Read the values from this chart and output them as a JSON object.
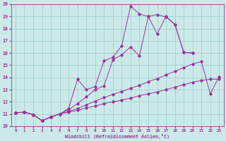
{
  "xlabel": "Windchill (Refroidissement éolien,°C)",
  "bg_color": "#cce9e9",
  "grid_color": "#99cccc",
  "line_color": "#993399",
  "xlim": [
    -0.5,
    23.5
  ],
  "ylim": [
    10,
    20
  ],
  "yticks": [
    10,
    11,
    12,
    13,
    14,
    15,
    16,
    17,
    18,
    19,
    20
  ],
  "xticks": [
    0,
    1,
    2,
    3,
    4,
    5,
    6,
    7,
    8,
    9,
    10,
    11,
    12,
    13,
    14,
    15,
    16,
    17,
    18,
    19,
    20,
    21,
    22,
    23
  ],
  "series": {
    "s1_x": [
      0,
      1,
      2,
      3,
      4,
      5,
      6,
      7,
      8,
      9,
      10,
      11,
      12,
      13,
      14,
      15,
      16,
      17,
      18,
      19,
      20,
      21,
      22,
      23
    ],
    "s1_y": [
      11.1,
      11.15,
      10.95,
      10.45,
      10.75,
      11.0,
      11.15,
      11.3,
      11.5,
      11.65,
      11.85,
      12.0,
      12.15,
      12.3,
      12.5,
      12.65,
      12.8,
      13.0,
      13.2,
      13.4,
      13.6,
      13.75,
      13.85,
      13.85
    ],
    "s2_x": [
      0,
      1,
      2,
      3,
      4,
      5,
      6,
      7,
      8,
      9,
      10,
      11,
      12,
      13,
      14,
      15,
      16,
      17,
      18,
      19,
      20,
      21,
      22,
      23
    ],
    "s2_y": [
      11.1,
      11.15,
      10.95,
      10.45,
      10.75,
      11.0,
      11.2,
      11.45,
      11.75,
      12.05,
      12.35,
      12.6,
      12.85,
      13.1,
      13.35,
      13.65,
      13.9,
      14.2,
      14.5,
      14.8,
      15.1,
      15.3,
      12.65,
      14.05
    ],
    "s3_x": [
      0,
      1,
      2,
      3,
      4,
      5,
      6,
      7,
      8,
      9,
      10,
      11,
      12,
      13,
      14,
      15,
      16,
      17,
      18,
      19,
      20
    ],
    "s3_y": [
      11.1,
      11.15,
      10.95,
      10.45,
      10.75,
      11.0,
      11.35,
      11.85,
      12.4,
      13.0,
      13.3,
      15.45,
      15.85,
      16.5,
      15.75,
      19.0,
      19.15,
      18.95,
      18.35,
      16.05,
      16.0
    ],
    "s4_x": [
      0,
      1,
      2,
      3,
      4,
      5,
      6,
      7,
      8,
      9,
      10,
      11,
      12,
      13,
      14,
      15,
      16,
      17,
      18,
      19,
      20
    ],
    "s4_y": [
      11.1,
      11.15,
      10.95,
      10.45,
      10.75,
      11.0,
      11.45,
      13.85,
      13.0,
      13.25,
      15.35,
      15.65,
      16.6,
      19.85,
      19.2,
      19.0,
      17.55,
      19.0,
      18.35,
      16.05,
      16.0
    ]
  }
}
